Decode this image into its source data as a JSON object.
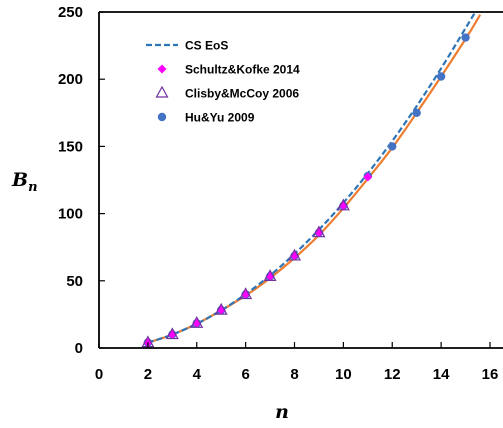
{
  "chart_data": {
    "type": "scatter",
    "title": "",
    "xlabel": "n",
    "ylabel_main": "B",
    "ylabel_sub": "n",
    "xlim": [
      0,
      16
    ],
    "ylim": [
      0,
      250
    ],
    "xticks": [
      "0",
      "2",
      "4",
      "6",
      "8",
      "10",
      "12",
      "14",
      "16"
    ],
    "yticks": [
      "0",
      "50",
      "100",
      "150",
      "200",
      "250"
    ],
    "grid": false,
    "legend_position": "top-left",
    "series": [
      {
        "name": "CS EoS",
        "kind": "dashed-line",
        "color": "#2E75B6",
        "x": [
          2,
          3,
          4,
          5,
          6,
          7,
          8,
          9,
          10,
          11,
          12,
          13,
          14,
          15,
          15.4
        ],
        "values": [
          4,
          10,
          18,
          28,
          40,
          54,
          70,
          88,
          108,
          130,
          154,
          180,
          208,
          238,
          250
        ]
      },
      {
        "name": "",
        "kind": "solid-line",
        "color": "#ED7D31",
        "x": [
          2,
          3,
          4,
          5,
          6,
          7,
          8,
          9,
          10,
          11,
          12,
          13,
          14,
          15,
          15.6
        ],
        "values": [
          4,
          10,
          18,
          28,
          39,
          52,
          67,
          84,
          104,
          126,
          149,
          175,
          202,
          230,
          248
        ]
      },
      {
        "name": "Schultz&Kofke 2014",
        "kind": "diamond",
        "color": "#FF00FF",
        "x": [
          2,
          3,
          4,
          5,
          6,
          7,
          8,
          9,
          10,
          11
        ],
        "values": [
          4,
          10,
          18.4,
          28.2,
          39.8,
          53.3,
          68.5,
          85.8,
          105.8,
          127.2
        ]
      },
      {
        "name": "Clisby&McCoy 2006",
        "kind": "triangle",
        "color": "#7030A0",
        "x": [
          2,
          3,
          4,
          5,
          6,
          7,
          8,
          9,
          10
        ],
        "values": [
          4,
          10,
          18.4,
          28.2,
          39.8,
          53.3,
          68.5,
          85.8,
          105.8
        ]
      },
      {
        "name": "Hu&Yu 2009",
        "kind": "circle",
        "color": "#4472C4",
        "x": [
          2,
          3,
          4,
          5,
          6,
          7,
          8,
          9,
          10,
          11,
          12,
          13,
          14,
          15
        ],
        "values": [
          4,
          10,
          18.4,
          28.2,
          39.8,
          53.3,
          68.5,
          85.8,
          105.8,
          128,
          150,
          175,
          202,
          231
        ]
      }
    ]
  }
}
